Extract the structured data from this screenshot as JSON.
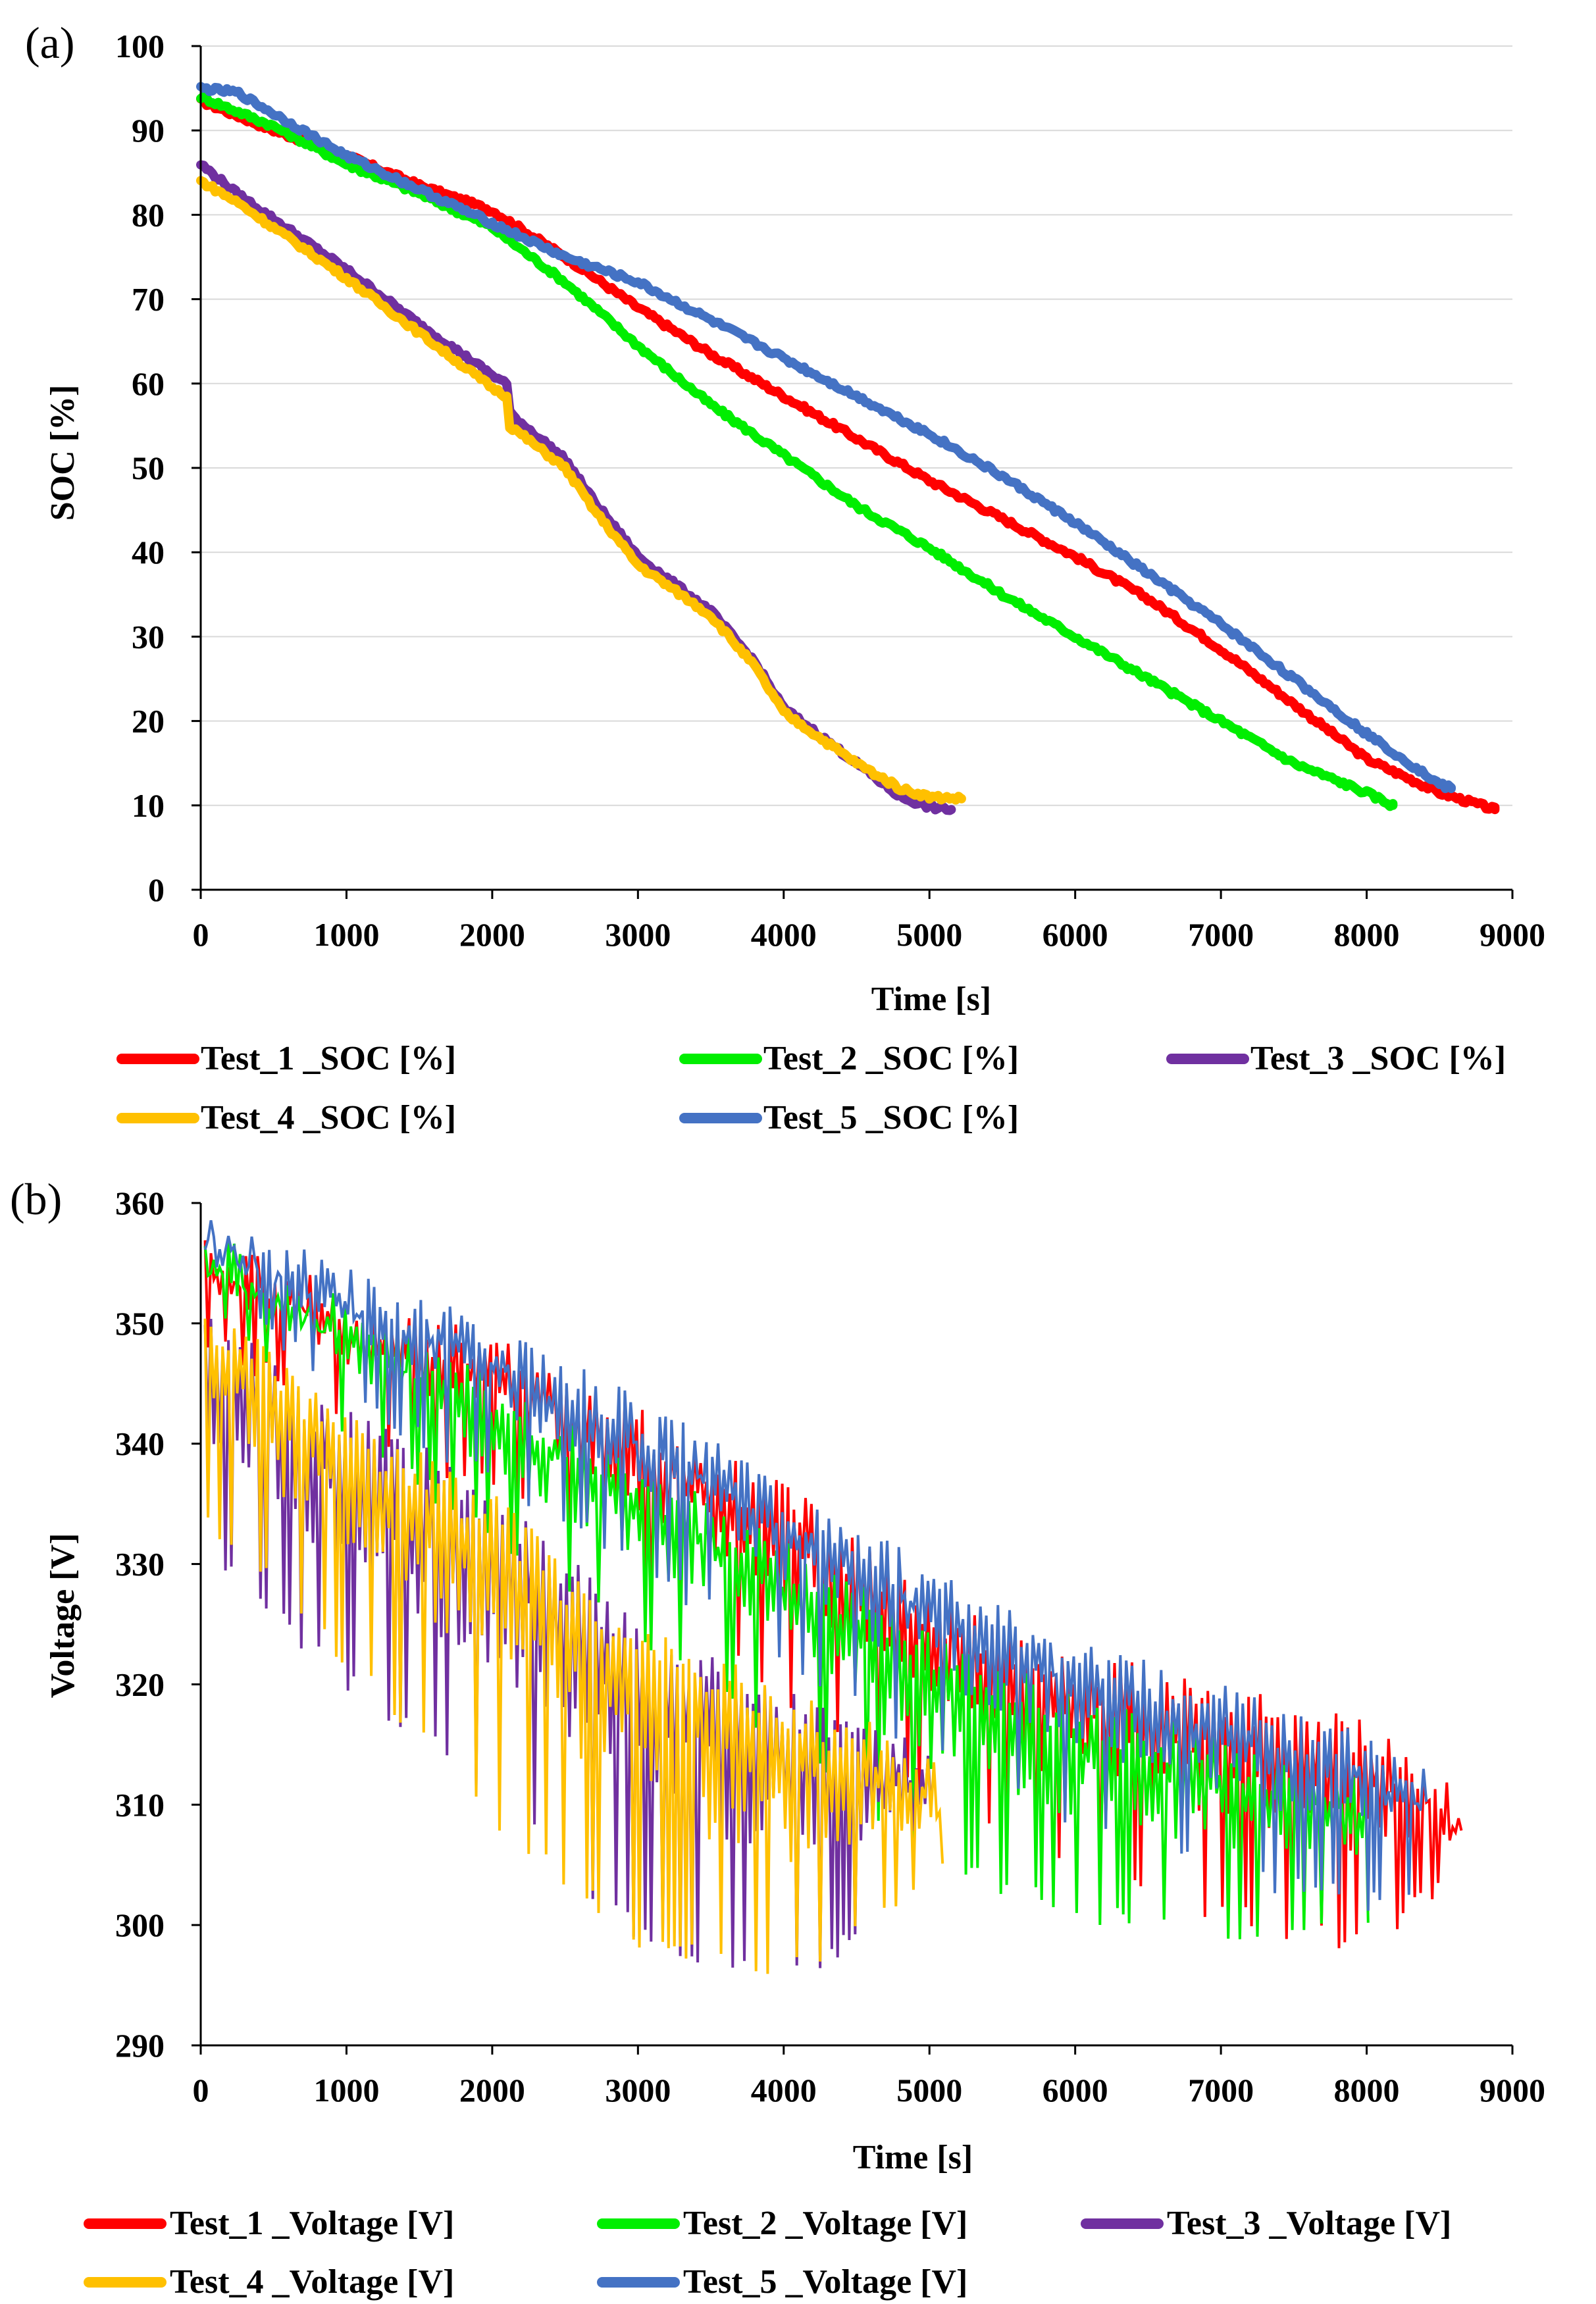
{
  "chart_data": [
    {
      "panel": "(a)",
      "type": "line",
      "xlabel": "Time [s]",
      "ylabel": "SOC [%]",
      "xlim": [
        0,
        9000
      ],
      "ylim": [
        0,
        100
      ],
      "xticks": [
        0,
        1000,
        2000,
        3000,
        4000,
        5000,
        6000,
        7000,
        8000,
        9000
      ],
      "yticks": [
        0,
        10,
        20,
        30,
        40,
        50,
        60,
        70,
        80,
        90,
        100
      ],
      "grid": "horizontal",
      "legend_position": "bottom",
      "series": [
        {
          "name": "Test_1 _SOC [%]",
          "color": "#ff0000",
          "x": [
            0,
            500,
            1000,
            1500,
            2000,
            2500,
            3000,
            3500,
            4000,
            4500,
            5000,
            5500,
            6000,
            6500,
            7000,
            7500,
            8000,
            8500,
            8880
          ],
          "y": [
            93.5,
            90,
            87,
            83.5,
            80.5,
            75,
            69,
            63.5,
            58.5,
            53.5,
            48.5,
            44,
            39.5,
            34.5,
            28.5,
            22,
            15.5,
            11.5,
            9.5
          ]
        },
        {
          "name": "Test_2 _SOC [%]",
          "color": "#00ee00",
          "x": [
            0,
            500,
            1000,
            1500,
            2000,
            2500,
            3000,
            3500,
            4000,
            4500,
            5000,
            5500,
            6000,
            6500,
            7000,
            7500,
            8000,
            8180
          ],
          "y": [
            94,
            90.5,
            86,
            82.5,
            78.5,
            72,
            64.5,
            57.5,
            51.5,
            45.5,
            40.5,
            35,
            30,
            25,
            20,
            15,
            11.5,
            10
          ]
        },
        {
          "name": "Test_3 _SOC [%]",
          "color": "#7030a0",
          "x": [
            0,
            250,
            500,
            1000,
            1500,
            2000,
            2100,
            2120,
            2500,
            2700,
            3000,
            3500,
            3800,
            4000,
            4500,
            4800,
            5000,
            5150
          ],
          "y": [
            86,
            82.5,
            79.5,
            73.5,
            67,
            61,
            60,
            56.5,
            51,
            46,
            39.5,
            33,
            27,
            21.5,
            15,
            11,
            9.8,
            9.5
          ]
        },
        {
          "name": "Test_4 _SOC [%]",
          "color": "#ffc000",
          "x": [
            0,
            250,
            500,
            1000,
            1500,
            2000,
            2100,
            2120,
            2500,
            2700,
            3000,
            3500,
            3800,
            4000,
            4500,
            4800,
            5000,
            5220
          ],
          "y": [
            84,
            81.5,
            78.5,
            72.5,
            66,
            59.5,
            58.5,
            55,
            50,
            45,
            38.5,
            32.5,
            26.5,
            21,
            15,
            12,
            11,
            10.8
          ]
        },
        {
          "name": "Test_5 _SOC [%]",
          "color": "#4472c4",
          "x": [
            0,
            250,
            500,
            1000,
            1500,
            2000,
            2500,
            3000,
            3500,
            4000,
            4500,
            5000,
            5500,
            6000,
            6500,
            7000,
            7500,
            8000,
            8500,
            8580
          ],
          "y": [
            95,
            94.5,
            92,
            87,
            83,
            79,
            75,
            72,
            67.5,
            63,
            58.5,
            54,
            49,
            43.5,
            37.5,
            31.5,
            25,
            18.5,
            12.5,
            12
          ]
        }
      ]
    },
    {
      "panel": "(b)",
      "type": "line",
      "xlabel": "Time [s]",
      "ylabel": "Voltage [V]",
      "xlim": [
        0,
        9000
      ],
      "ylim": [
        290,
        360
      ],
      "xticks": [
        0,
        1000,
        2000,
        3000,
        4000,
        5000,
        6000,
        7000,
        8000,
        9000
      ],
      "yticks": [
        290,
        300,
        310,
        320,
        330,
        340,
        350,
        360
      ],
      "grid": "none",
      "legend_position": "bottom",
      "note": "High-frequency oscillating voltage traces; values give the approximate upper envelope, lower envelope and sample spacing.",
      "series": [
        {
          "name": "Test_1 _Voltage [V]",
          "color": "#ff0000",
          "x_start": 30,
          "x_end": 8650,
          "step": 40,
          "env_x": [
            0,
            1000,
            2000,
            3000,
            4000,
            5000,
            6000,
            7000,
            8000,
            8400,
            8650
          ],
          "env_high": [
            358,
            353,
            349,
            343,
            337,
            328,
            323,
            320,
            317,
            314,
            311
          ],
          "env_low": [
            350,
            343,
            337,
            329,
            320,
            311,
            305,
            302,
            299,
            304,
            304
          ]
        },
        {
          "name": "Test_2 _Voltage [V]",
          "color": "#00ee00",
          "x_start": 30,
          "x_end": 8000,
          "step": 40,
          "env_x": [
            0,
            1000,
            2000,
            3000,
            4000,
            5000,
            6000,
            7000,
            8000
          ],
          "env_high": [
            358,
            352,
            346,
            339,
            332,
            325,
            319,
            316,
            313
          ],
          "env_low": [
            352,
            342,
            333,
            325,
            316,
            306,
            302,
            300,
            302
          ]
        },
        {
          "name": "Test_3 _Voltage [V]",
          "color": "#7030a0",
          "x_start": 30,
          "x_end": 5000,
          "step": 40,
          "env_x": [
            0,
            1000,
            2000,
            3000,
            4000,
            5000
          ],
          "env_high": [
            352,
            343,
            337,
            325,
            320,
            315
          ],
          "env_low": [
            333,
            321,
            312,
            300,
            297,
            303
          ]
        },
        {
          "name": "Test_4 _Voltage [V]",
          "color": "#ffc000",
          "x_start": 30,
          "x_end": 5100,
          "step": 40,
          "env_x": [
            0,
            1000,
            2000,
            3000,
            4000,
            5000,
            5100
          ],
          "env_high": [
            353,
            343,
            336,
            325,
            320,
            315,
            312
          ],
          "env_low": [
            335,
            323,
            310,
            300,
            297,
            304,
            306
          ]
        },
        {
          "name": "Test_5 _Voltage [V]",
          "color": "#4472c4",
          "x_start": 30,
          "x_end": 8400,
          "step": 40,
          "env_x": [
            0,
            1000,
            2000,
            3000,
            4000,
            5000,
            6000,
            7000,
            8000,
            8400
          ],
          "env_high": [
            359,
            355,
            350,
            344,
            337,
            330,
            324,
            320,
            316,
            313
          ],
          "env_low": [
            355,
            345,
            338,
            331,
            323,
            315,
            310,
            305,
            303,
            305
          ]
        }
      ]
    }
  ]
}
